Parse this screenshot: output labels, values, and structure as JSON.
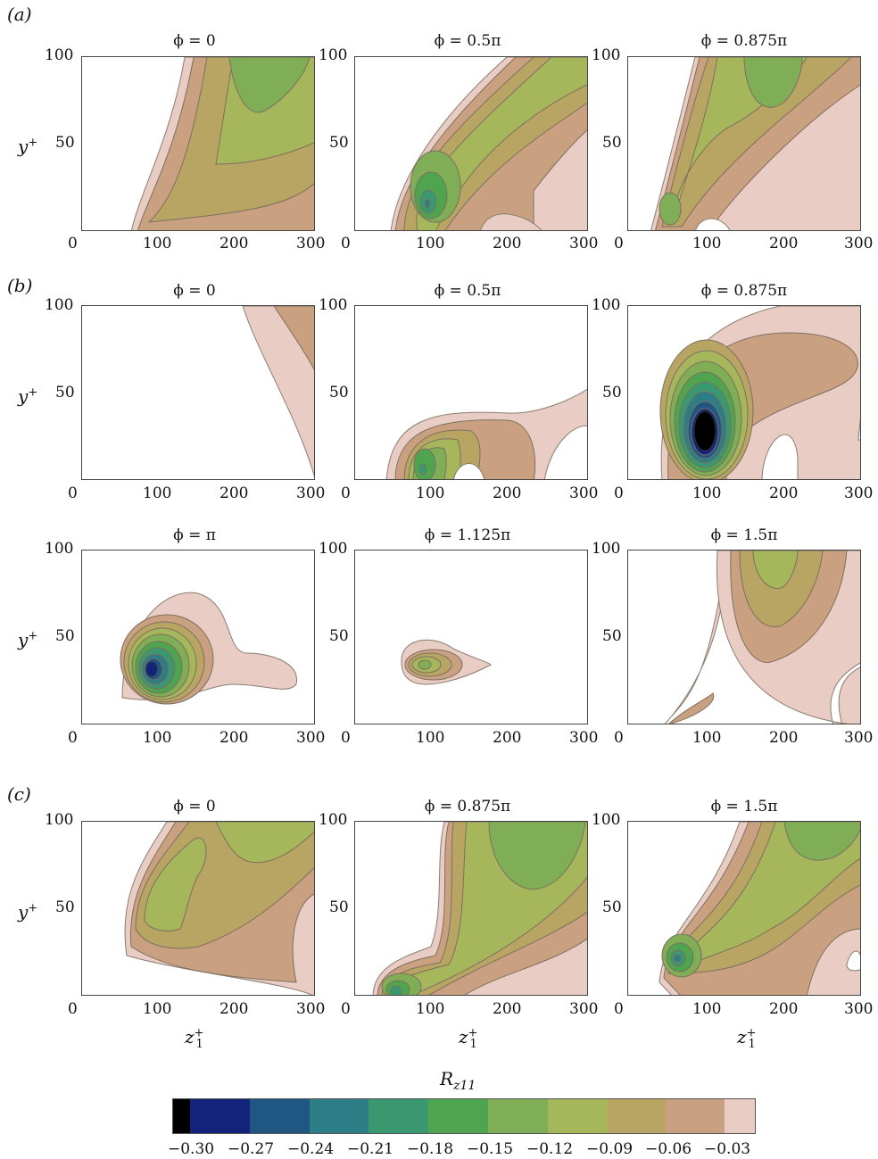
{
  "section_labels": [
    "(a)",
    "(b)",
    "(c)"
  ],
  "titles": {
    "a": [
      "ϕ = 0",
      "ϕ = 0.5π",
      "ϕ = 0.875π"
    ],
    "b1": [
      "ϕ = 0",
      "ϕ = 0.5π",
      "ϕ = 0.875π"
    ],
    "b2": [
      "ϕ = π",
      "ϕ = 1.125π",
      "ϕ = 1.5π"
    ],
    "c": [
      "ϕ = 0",
      "ϕ = 0.875π",
      "ϕ = 1.5π"
    ]
  },
  "axes": {
    "y_label": "y+",
    "x_label": "z1+",
    "y_ticks": [
      "100",
      "50"
    ],
    "x_ticks": [
      "0",
      "100",
      "200",
      "300"
    ]
  },
  "colorbar": {
    "title": "Rz11",
    "tick_labels": [
      "−0.30",
      "−0.27",
      "−0.24",
      "−0.21",
      "−0.18",
      "−0.15",
      "−0.12",
      "−0.09",
      "−0.06",
      "−0.03"
    ],
    "colors": [
      "#000000",
      "#13237a",
      "#1f5682",
      "#2c7d85",
      "#3a9870",
      "#4fa450",
      "#7fae56",
      "#a6b65a",
      "#b9a563",
      "#c9a180",
      "#e9ccc3"
    ]
  },
  "chart_data": {
    "type": "contour",
    "x_range": [
      0,
      300
    ],
    "y_range": [
      0,
      100
    ],
    "levels": [
      -0.3,
      -0.27,
      -0.24,
      -0.21,
      -0.18,
      -0.15,
      -0.12,
      -0.09,
      -0.06,
      -0.03
    ],
    "panels": [
      {
        "id": "a1",
        "min_value": -0.12
      },
      {
        "id": "a2",
        "min_value": -0.15
      },
      {
        "id": "a3",
        "min_value": -0.12
      },
      {
        "id": "b1",
        "min_value": -0.06
      },
      {
        "id": "b2",
        "min_value": -0.18
      },
      {
        "id": "b3",
        "min_value": -0.3
      },
      {
        "id": "b4",
        "min_value": -0.27
      },
      {
        "id": "b5",
        "min_value": -0.15
      },
      {
        "id": "b6",
        "min_value": -0.09
      },
      {
        "id": "c1",
        "min_value": -0.12
      },
      {
        "id": "c2",
        "min_value": -0.15
      },
      {
        "id": "c3",
        "min_value": -0.18
      }
    ]
  }
}
